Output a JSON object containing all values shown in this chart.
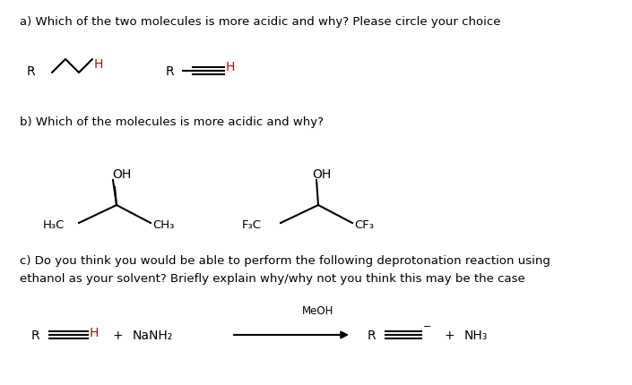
{
  "bg_color": "#ffffff",
  "text_color": "#000000",
  "red_color": "#cc0000",
  "title_a": "a) Which of the two molecules is more acidic and why? Please circle your choice",
  "title_b": "b) Which of the molecules is more acidic and why?",
  "title_c_line1": "c) Do you think you would be able to perform the following deprotonation reaction using",
  "title_c_line2": "ethanol as your solvent? Briefly explain why/why not you think this may be the case",
  "font_size_title": 9.5,
  "font_size_mol": 10,
  "font_size_small": 8.5,
  "fig_w": 7.05,
  "fig_h": 4.31,
  "dpi": 100
}
